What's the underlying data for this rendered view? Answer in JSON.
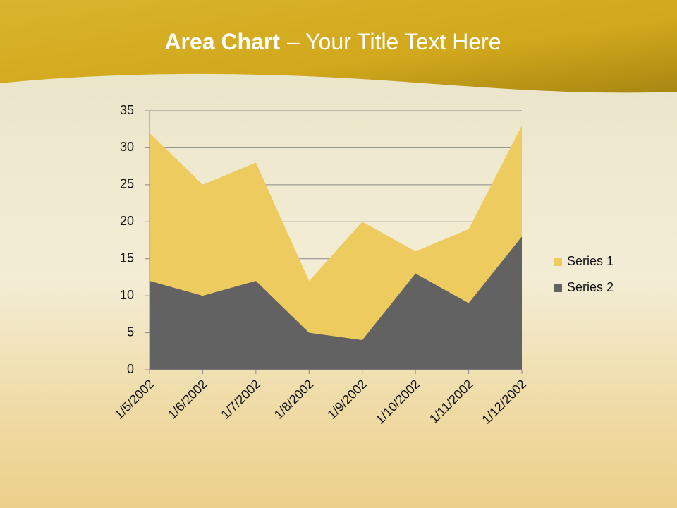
{
  "chart_data": {
    "type": "area",
    "title": {
      "bold": "Area Chart",
      "rest": "– Your Title Text Here"
    },
    "categories": [
      "1/5/2002",
      "1/6/2002",
      "1/7/2002",
      "1/8/2002",
      "1/9/2002",
      "1/10/2002",
      "1/11/2002",
      "1/12/2002"
    ],
    "series": [
      {
        "name": "Series 1",
        "color": "#eecb5e",
        "values": [
          32,
          25,
          28,
          12,
          20,
          16,
          19,
          33
        ]
      },
      {
        "name": "Series 2",
        "color": "#626262",
        "values": [
          12,
          10,
          12,
          5,
          4,
          13,
          9,
          18
        ]
      }
    ],
    "ylim": [
      0,
      35
    ],
    "yticks": [
      0,
      5,
      10,
      15,
      20,
      25,
      30,
      35
    ],
    "grid": true,
    "legend": "right"
  }
}
